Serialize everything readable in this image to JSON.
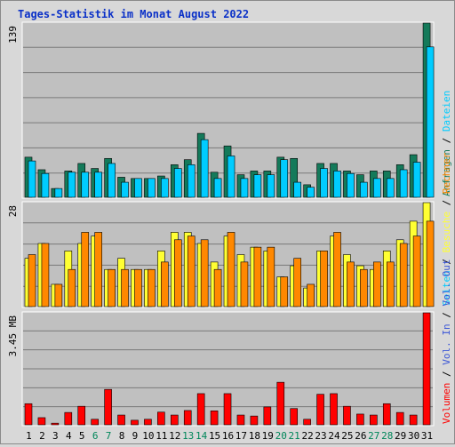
{
  "title": "Tages-Statistik im Monat August 2022",
  "colors": {
    "panel_bg": "#c0c0c0",
    "grid": "#7a7a7a",
    "hits": "#147a5a",
    "files": "#00ccff",
    "visits": "#ffff33",
    "sites": "#ff8800",
    "kbytes": "#ff0000",
    "weekend_label": "#00865a",
    "day_label": "#000000",
    "ylabel": "#000000"
  },
  "chart_data": [
    {
      "type": "bar",
      "panel": "top",
      "ymax_label": "139",
      "ylim": [
        0,
        139
      ],
      "categories": [
        "1",
        "2",
        "3",
        "4",
        "5",
        "6",
        "7",
        "8",
        "9",
        "10",
        "11",
        "12",
        "13",
        "14",
        "15",
        "16",
        "17",
        "18",
        "19",
        "20",
        "21",
        "22",
        "23",
        "24",
        "25",
        "26",
        "27",
        "28",
        "29",
        "30",
        "31"
      ],
      "weekend_days": [
        6,
        7,
        13,
        14,
        20,
        21,
        27,
        28
      ],
      "series": [
        {
          "name": "Anfragen",
          "color_key": "hits",
          "values": [
            32,
            22,
            7,
            21,
            27,
            23,
            31,
            16,
            15,
            15,
            17,
            26,
            30,
            51,
            20,
            41,
            18,
            21,
            21,
            32,
            31,
            10,
            27,
            27,
            21,
            18,
            21,
            21,
            26,
            34,
            139
          ]
        },
        {
          "name": "Dateien",
          "color_key": "files",
          "values": [
            29,
            19,
            7,
            20,
            20,
            20,
            27,
            12,
            15,
            15,
            15,
            23,
            26,
            46,
            15,
            33,
            15,
            18,
            18,
            30,
            12,
            8,
            23,
            21,
            19,
            12,
            15,
            15,
            22,
            28,
            120
          ]
        }
      ],
      "legend": [
        "Anfragen",
        "/",
        "Dateien"
      ]
    },
    {
      "type": "bar",
      "panel": "middle",
      "ymax_label": "28",
      "ylim": [
        0,
        28
      ],
      "categories": [
        "1",
        "2",
        "3",
        "4",
        "5",
        "6",
        "7",
        "8",
        "9",
        "10",
        "11",
        "12",
        "13",
        "14",
        "15",
        "16",
        "17",
        "18",
        "19",
        "20",
        "21",
        "22",
        "23",
        "24",
        "25",
        "26",
        "27",
        "28",
        "29",
        "30",
        "31"
      ],
      "series": [
        {
          "name": "Seiten",
          "color_key": "files",
          "values": [
            0,
            0,
            0,
            0,
            0,
            0,
            0,
            0,
            0,
            0,
            0,
            0,
            0,
            0,
            0,
            0,
            0,
            0,
            0,
            0,
            0,
            0,
            0,
            0,
            0,
            0,
            0,
            0,
            0,
            0,
            0
          ]
        },
        {
          "name": "Besuche",
          "color_key": "visits",
          "values": [
            13,
            17,
            6,
            15,
            17,
            19,
            10,
            13,
            10,
            10,
            15,
            20,
            20,
            17,
            12,
            19,
            14,
            16,
            15,
            8,
            11,
            5,
            15,
            19,
            14,
            11,
            10,
            15,
            18,
            23,
            28
          ]
        },
        {
          "name": "Rechner",
          "color_key": "sites",
          "values": [
            14,
            17,
            6,
            10,
            20,
            20,
            10,
            10,
            10,
            10,
            12,
            18,
            19,
            18,
            10,
            20,
            12,
            16,
            16,
            8,
            13,
            6,
            15,
            20,
            12,
            10,
            12,
            12,
            17,
            19,
            23
          ]
        }
      ],
      "legend": [
        "Seiten",
        "/",
        "Besuche",
        "/",
        "Rechner"
      ]
    },
    {
      "type": "bar",
      "panel": "bottom",
      "ymax_label": "3.45 MB",
      "ylim": [
        0,
        3.45
      ],
      "unit": "MB",
      "categories": [
        "1",
        "2",
        "3",
        "4",
        "5",
        "6",
        "7",
        "8",
        "9",
        "10",
        "11",
        "12",
        "13",
        "14",
        "15",
        "16",
        "17",
        "18",
        "19",
        "20",
        "21",
        "22",
        "23",
        "24",
        "25",
        "26",
        "27",
        "28",
        "29",
        "30",
        "31"
      ],
      "series": [
        {
          "name": "Volumen",
          "color_key": "kbytes",
          "values": [
            0.65,
            0.22,
            0.05,
            0.38,
            0.57,
            0.17,
            1.09,
            0.3,
            0.14,
            0.17,
            0.39,
            0.3,
            0.44,
            0.96,
            0.43,
            0.96,
            0.3,
            0.27,
            0.55,
            1.31,
            0.5,
            0.17,
            0.94,
            0.96,
            0.57,
            0.33,
            0.3,
            0.65,
            0.38,
            0.3,
            3.45
          ]
        }
      ],
      "legend": [
        "Volumen",
        "/",
        "Vol. In",
        "/",
        "Vol. Out"
      ]
    }
  ]
}
